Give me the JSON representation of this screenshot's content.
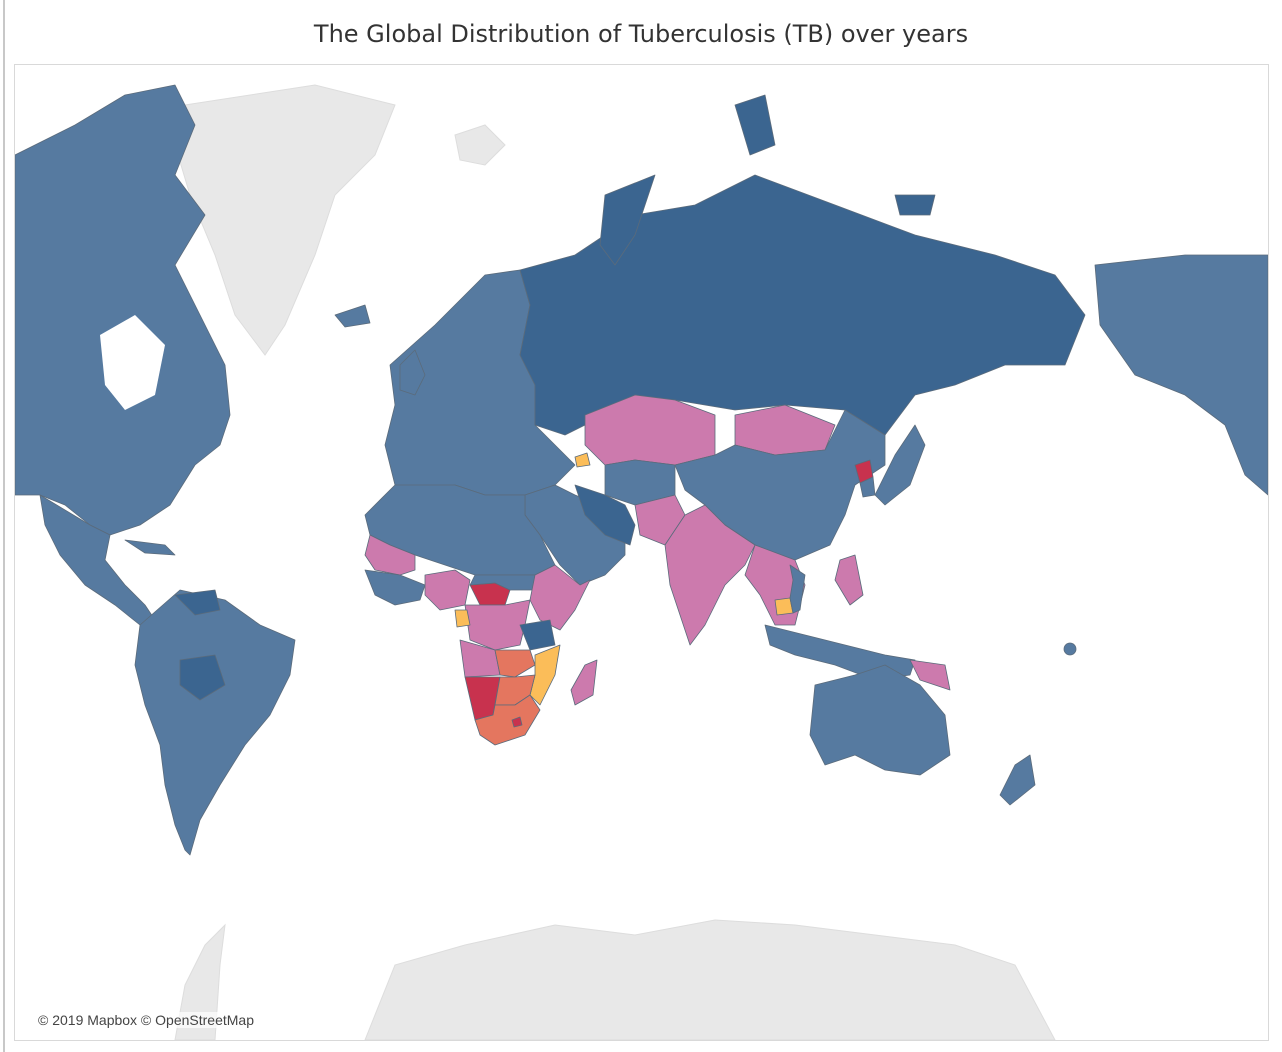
{
  "title": "The Global Distribution of Tuberculosis (TB) over years",
  "attribution": "© 2019 Mapbox © OpenStreetMap",
  "colors": {
    "low": "#567aa0",
    "low_dark": "#3b6590",
    "medium": "#cc7aad",
    "medium_high": "#fbbd59",
    "high": "#e4765f",
    "very_high": "#c8324e",
    "no_data_land": "#e8e8e8",
    "ocean": "#ffffff"
  },
  "regions": [
    {
      "name": "North America",
      "category": "low"
    },
    {
      "name": "Greenland",
      "category": "no_data_land"
    },
    {
      "name": "Central America",
      "category": "low"
    },
    {
      "name": "South America",
      "category": "low"
    },
    {
      "name": "Venezuela",
      "category": "low_dark"
    },
    {
      "name": "Bolivia",
      "category": "low_dark"
    },
    {
      "name": "Europe",
      "category": "low"
    },
    {
      "name": "Russia",
      "category": "low_dark"
    },
    {
      "name": "Kazakhstan",
      "category": "medium"
    },
    {
      "name": "Mongolia",
      "category": "medium"
    },
    {
      "name": "China",
      "category": "low"
    },
    {
      "name": "India",
      "category": "medium"
    },
    {
      "name": "Iran",
      "category": "low_dark"
    },
    {
      "name": "Middle East",
      "category": "low"
    },
    {
      "name": "North Africa",
      "category": "low"
    },
    {
      "name": "Mali / Mauritania",
      "category": "medium"
    },
    {
      "name": "Nigeria",
      "category": "medium"
    },
    {
      "name": "Central African Republic",
      "category": "very_high"
    },
    {
      "name": "Ethiopia / Kenya",
      "category": "medium"
    },
    {
      "name": "DR Congo",
      "category": "medium"
    },
    {
      "name": "Gabon",
      "category": "medium_high"
    },
    {
      "name": "Tanzania",
      "category": "low_dark"
    },
    {
      "name": "Angola",
      "category": "medium"
    },
    {
      "name": "Zambia",
      "category": "high"
    },
    {
      "name": "Mozambique",
      "category": "medium_high"
    },
    {
      "name": "Namibia",
      "category": "very_high"
    },
    {
      "name": "South Africa",
      "category": "high"
    },
    {
      "name": "Madagascar",
      "category": "medium"
    },
    {
      "name": "Southeast Asia",
      "category": "medium"
    },
    {
      "name": "Cambodia",
      "category": "medium_high"
    },
    {
      "name": "Indonesia",
      "category": "low"
    },
    {
      "name": "Philippines",
      "category": "medium"
    },
    {
      "name": "Papua New Guinea",
      "category": "medium"
    },
    {
      "name": "Australia",
      "category": "low"
    },
    {
      "name": "New Zealand",
      "category": "low"
    },
    {
      "name": "Japan",
      "category": "low"
    },
    {
      "name": "Antarctica",
      "category": "no_data_land"
    }
  ]
}
